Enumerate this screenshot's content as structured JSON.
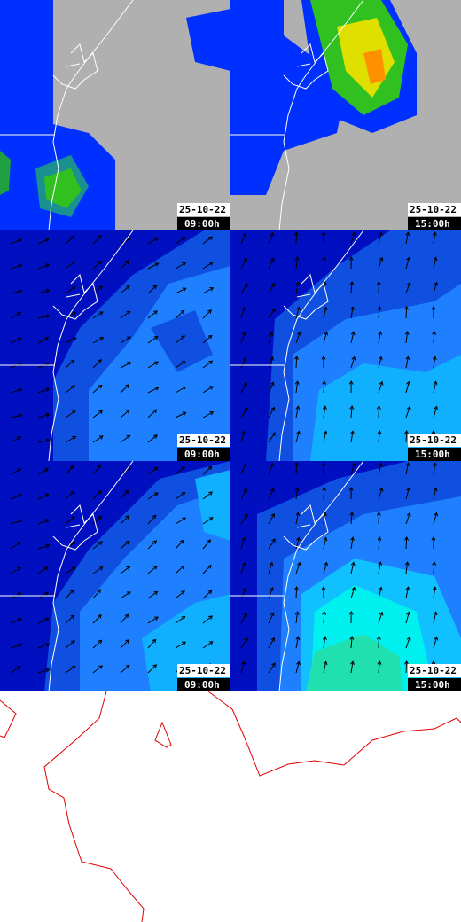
{
  "panels": [
    {
      "date": "25-10-22",
      "time": "09:00h"
    },
    {
      "date": "25-10-22",
      "time": "15:00h"
    },
    {
      "date": "25-10-22",
      "time": "09:00h"
    },
    {
      "date": "25-10-22",
      "time": "15:00h"
    },
    {
      "date": "25-10-22",
      "time": "09:00h"
    },
    {
      "date": "25-10-22",
      "time": "15:00h"
    }
  ]
}
